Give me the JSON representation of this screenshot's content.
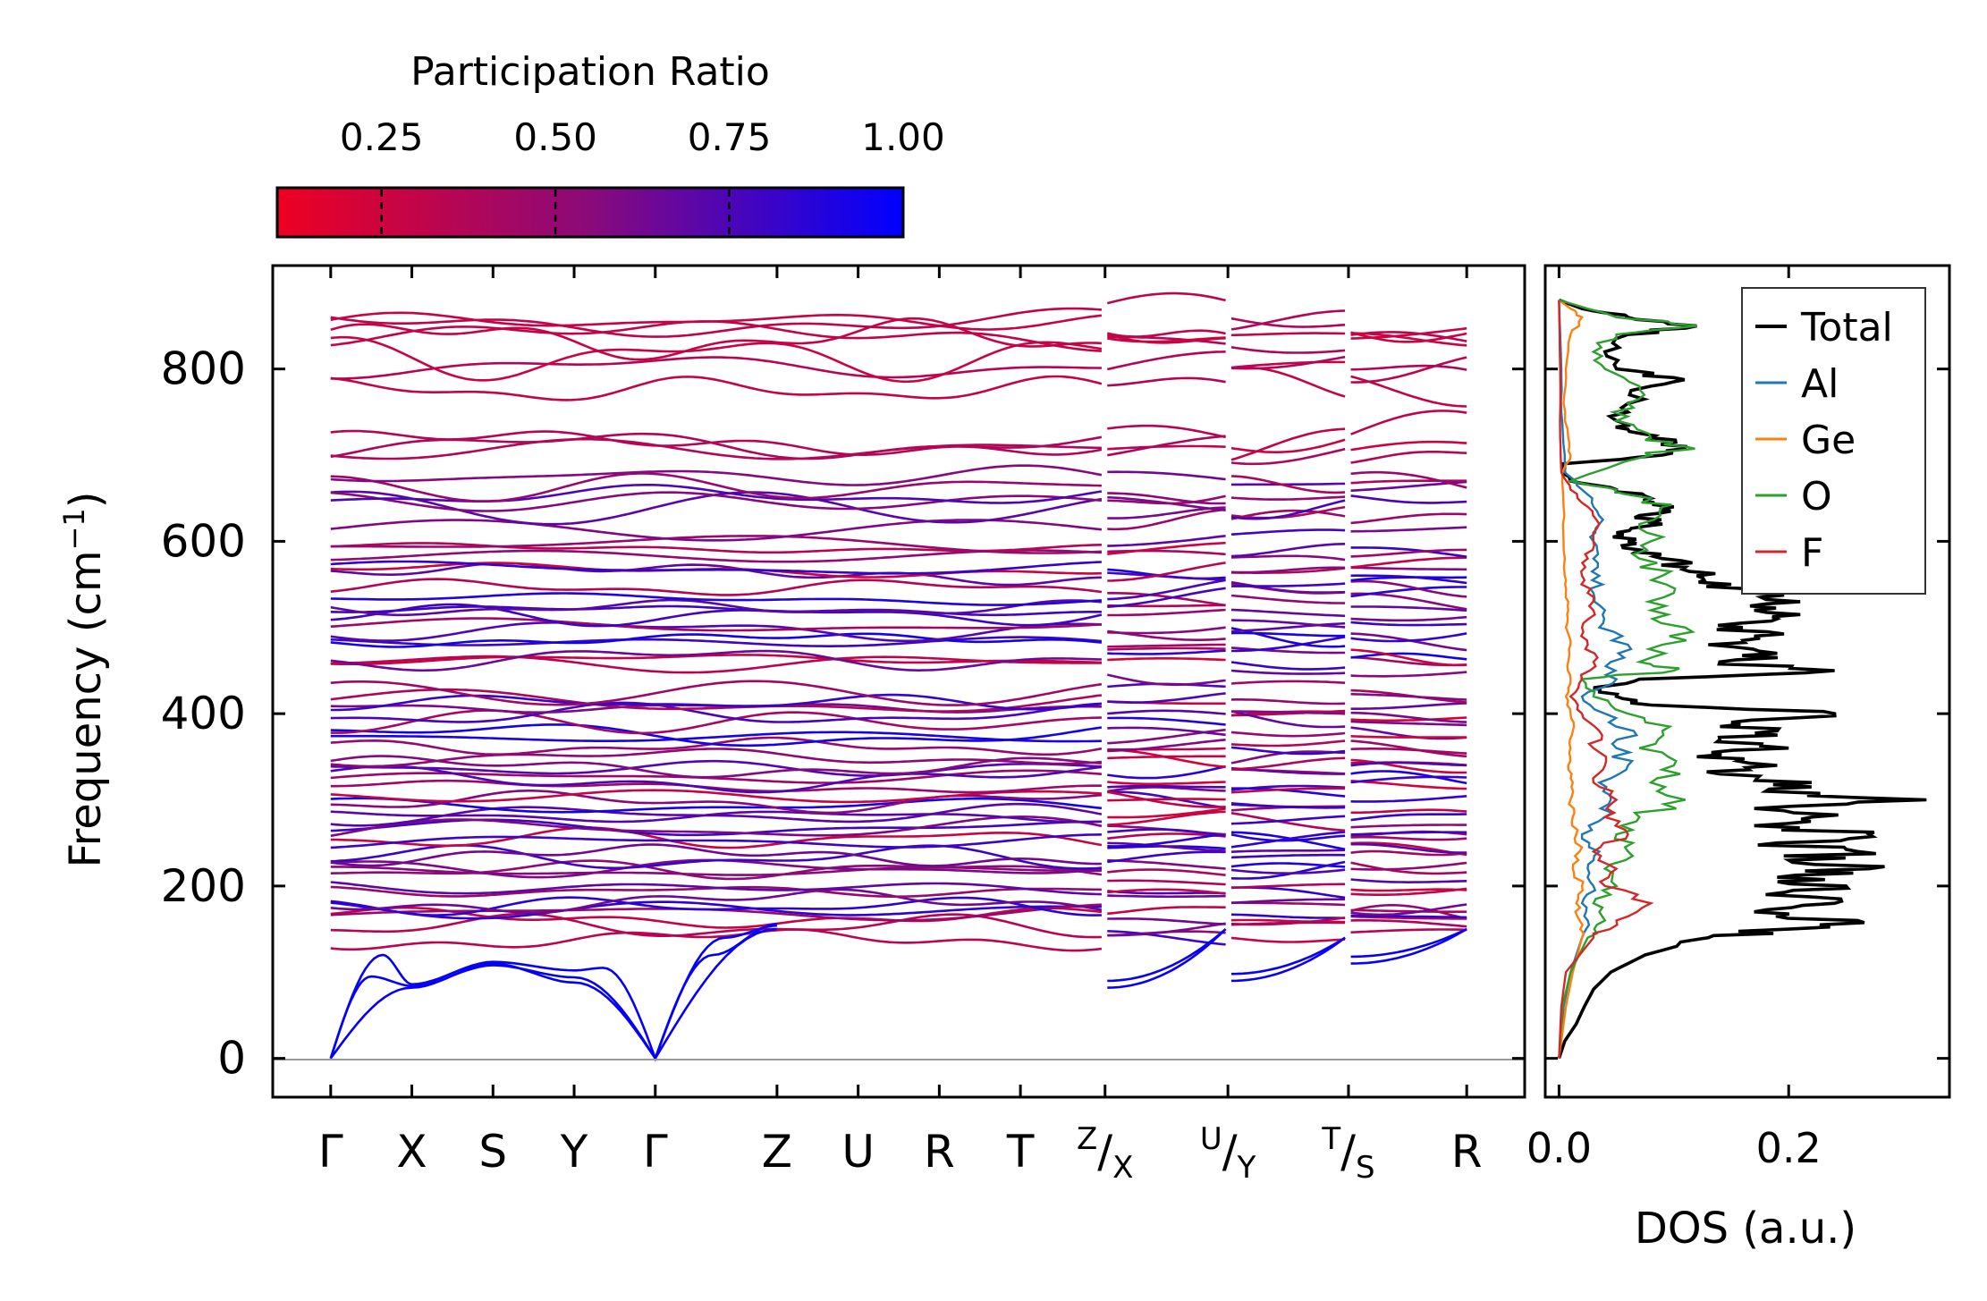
{
  "chart_data": [
    {
      "type": "line",
      "name": "phonon-band-structure",
      "title": "",
      "ylabel": "Frequency (cm",
      "ylabel_sup": "−1",
      "ylabel_tail": ")",
      "ylim": [
        -45,
        920
      ],
      "yticks": [
        0,
        200,
        400,
        600,
        800
      ],
      "ytick_labels": [
        "0",
        "200",
        "400",
        "600",
        "800"
      ],
      "path_segments": [
        {
          "labels": [
            "Γ",
            "X",
            "S",
            "Y",
            "Γ",
            "Z",
            "U",
            "R",
            "T",
            "Z"
          ],
          "positions": [
            0,
            0.7,
            1.4,
            2.1,
            2.8,
            3.85,
            4.55,
            5.25,
            5.95,
            6.65
          ]
        },
        {
          "labels": [
            "X",
            "U"
          ],
          "positions": [
            6.7,
            7.72
          ]
        },
        {
          "labels": [
            "Y",
            "T"
          ],
          "positions": [
            7.77,
            8.75
          ]
        },
        {
          "labels": [
            "S",
            "R"
          ],
          "positions": [
            8.8,
            9.8
          ]
        }
      ],
      "tick_labels": [
        {
          "text": "Γ",
          "x": 0
        },
        {
          "text": "X",
          "x": 0.7
        },
        {
          "text": "S",
          "x": 1.4
        },
        {
          "text": "Y",
          "x": 2.1
        },
        {
          "text": "Γ",
          "x": 2.8
        },
        {
          "text": "Z",
          "x": 3.85
        },
        {
          "text": "U",
          "x": 4.55
        },
        {
          "text": "R",
          "x": 5.25
        },
        {
          "text": "T",
          "x": 5.95
        },
        {
          "text": "Z",
          "sub": "X",
          "sup_style": true,
          "x": 6.68
        },
        {
          "text": "U",
          "sub": "Y",
          "sup_style": true,
          "x": 7.74
        },
        {
          "text": "T",
          "sub": "S",
          "sup_style": true,
          "x": 8.78
        },
        {
          "text": "R",
          "x": 9.8
        }
      ],
      "xlim": [
        -0.5,
        10.3
      ],
      "acoustic_branches_at_gamma": 0,
      "zone_boundary_acoustic": {
        "X": 82,
        "S": 108,
        "Y": 88,
        "Z": 150
      },
      "optical_band_gap": [
        880,
        700,
        670,
        130
      ],
      "color_by": "participation_ratio"
    },
    {
      "type": "line",
      "name": "density-of-states",
      "xlabel": "DOS (a.u.)",
      "xlim": [
        -0.012,
        0.34
      ],
      "xticks": [
        0.0,
        0.2
      ],
      "xtick_labels": [
        "0.0",
        "0.2"
      ],
      "ylim": [
        -45,
        920
      ],
      "legend_position": "top-right",
      "series": [
        {
          "name": "Total",
          "color": "#000000",
          "points": [
            [
              0,
              0.0
            ],
            [
              20,
              0.005
            ],
            [
              40,
              0.015
            ],
            [
              60,
              0.022
            ],
            [
              80,
              0.03
            ],
            [
              100,
              0.045
            ],
            [
              120,
              0.075
            ],
            [
              140,
              0.13
            ],
            [
              150,
              0.2
            ],
            [
              160,
              0.26
            ],
            [
              170,
              0.17
            ],
            [
              180,
              0.24
            ],
            [
              190,
              0.18
            ],
            [
              200,
              0.25
            ],
            [
              210,
              0.19
            ],
            [
              220,
              0.27
            ],
            [
              230,
              0.2
            ],
            [
              240,
              0.26
            ],
            [
              250,
              0.19
            ],
            [
              260,
              0.27
            ],
            [
              270,
              0.17
            ],
            [
              280,
              0.22
            ],
            [
              290,
              0.17
            ],
            [
              300,
              0.32
            ],
            [
              310,
              0.18
            ],
            [
              320,
              0.22
            ],
            [
              330,
              0.14
            ],
            [
              340,
              0.19
            ],
            [
              350,
              0.12
            ],
            [
              360,
              0.2
            ],
            [
              370,
              0.14
            ],
            [
              380,
              0.19
            ],
            [
              390,
              0.15
            ],
            [
              400,
              0.24
            ],
            [
              410,
              0.08
            ],
            [
              420,
              0.05
            ],
            [
              430,
              0.03
            ],
            [
              440,
              0.07
            ],
            [
              450,
              0.24
            ],
            [
              460,
              0.14
            ],
            [
              470,
              0.19
            ],
            [
              480,
              0.13
            ],
            [
              490,
              0.17
            ],
            [
              500,
              0.16
            ],
            [
              510,
              0.19
            ],
            [
              520,
              0.17
            ],
            [
              530,
              0.21
            ],
            [
              540,
              0.17
            ],
            [
              550,
              0.15
            ],
            [
              560,
              0.12
            ],
            [
              570,
              0.11
            ],
            [
              580,
              0.09
            ],
            [
              590,
              0.07
            ],
            [
              600,
              0.06
            ],
            [
              610,
              0.05
            ],
            [
              620,
              0.09
            ],
            [
              630,
              0.07
            ],
            [
              640,
              0.1
            ],
            [
              650,
              0.08
            ],
            [
              660,
              0.05
            ],
            [
              670,
              0.01
            ],
            [
              680,
              0.005
            ],
            [
              690,
              0.003
            ],
            [
              700,
              0.09
            ],
            [
              710,
              0.11
            ],
            [
              720,
              0.08
            ],
            [
              730,
              0.06
            ],
            [
              740,
              0.05
            ],
            [
              760,
              0.06
            ],
            [
              780,
              0.08
            ],
            [
              790,
              0.1
            ],
            [
              800,
              0.05
            ],
            [
              820,
              0.04
            ],
            [
              840,
              0.06
            ],
            [
              850,
              0.12
            ],
            [
              860,
              0.06
            ],
            [
              870,
              0.02
            ],
            [
              880,
              0.0
            ]
          ]
        },
        {
          "name": "Al",
          "color": "#1f77b4",
          "points": [
            [
              0,
              0
            ],
            [
              60,
              0.004
            ],
            [
              100,
              0.01
            ],
            [
              140,
              0.02
            ],
            [
              160,
              0.025
            ],
            [
              180,
              0.02
            ],
            [
              200,
              0.03
            ],
            [
              220,
              0.025
            ],
            [
              240,
              0.035
            ],
            [
              260,
              0.02
            ],
            [
              280,
              0.04
            ],
            [
              300,
              0.045
            ],
            [
              320,
              0.035
            ],
            [
              340,
              0.06
            ],
            [
              360,
              0.05
            ],
            [
              380,
              0.065
            ],
            [
              400,
              0.04
            ],
            [
              420,
              0.02
            ],
            [
              440,
              0.05
            ],
            [
              460,
              0.045
            ],
            [
              480,
              0.06
            ],
            [
              500,
              0.035
            ],
            [
              520,
              0.04
            ],
            [
              540,
              0.03
            ],
            [
              560,
              0.035
            ],
            [
              580,
              0.03
            ],
            [
              600,
              0.03
            ],
            [
              620,
              0.035
            ],
            [
              640,
              0.03
            ],
            [
              660,
              0.02
            ],
            [
              680,
              0.005
            ],
            [
              700,
              0.005
            ],
            [
              750,
              0.002
            ],
            [
              800,
              0.002
            ],
            [
              880,
              0
            ]
          ]
        },
        {
          "name": "Ge",
          "color": "#ff7f0e",
          "points": [
            [
              0,
              0
            ],
            [
              60,
              0.006
            ],
            [
              100,
              0.012
            ],
            [
              140,
              0.02
            ],
            [
              160,
              0.018
            ],
            [
              180,
              0.015
            ],
            [
              200,
              0.02
            ],
            [
              220,
              0.012
            ],
            [
              240,
              0.018
            ],
            [
              260,
              0.015
            ],
            [
              280,
              0.012
            ],
            [
              300,
              0.01
            ],
            [
              320,
              0.012
            ],
            [
              340,
              0.008
            ],
            [
              360,
              0.01
            ],
            [
              380,
              0.012
            ],
            [
              400,
              0.01
            ],
            [
              420,
              0.006
            ],
            [
              440,
              0.01
            ],
            [
              460,
              0.008
            ],
            [
              480,
              0.01
            ],
            [
              500,
              0.006
            ],
            [
              520,
              0.008
            ],
            [
              540,
              0.006
            ],
            [
              560,
              0.005
            ],
            [
              600,
              0.004
            ],
            [
              640,
              0.004
            ],
            [
              680,
              0.003
            ],
            [
              700,
              0.01
            ],
            [
              720,
              0.008
            ],
            [
              760,
              0.004
            ],
            [
              800,
              0.006
            ],
            [
              840,
              0.01
            ],
            [
              860,
              0.02
            ],
            [
              870,
              0.01
            ],
            [
              880,
              0
            ]
          ]
        },
        {
          "name": "O",
          "color": "#2ca02c",
          "points": [
            [
              0,
              0
            ],
            [
              60,
              0.003
            ],
            [
              100,
              0.01
            ],
            [
              140,
              0.025
            ],
            [
              160,
              0.04
            ],
            [
              180,
              0.03
            ],
            [
              200,
              0.05
            ],
            [
              220,
              0.04
            ],
            [
              240,
              0.06
            ],
            [
              260,
              0.05
            ],
            [
              280,
              0.07
            ],
            [
              300,
              0.11
            ],
            [
              320,
              0.08
            ],
            [
              340,
              0.1
            ],
            [
              360,
              0.07
            ],
            [
              380,
              0.09
            ],
            [
              400,
              0.06
            ],
            [
              420,
              0.03
            ],
            [
              440,
              0.02
            ],
            [
              450,
              0.1
            ],
            [
              460,
              0.07
            ],
            [
              480,
              0.09
            ],
            [
              500,
              0.11
            ],
            [
              520,
              0.08
            ],
            [
              540,
              0.1
            ],
            [
              560,
              0.09
            ],
            [
              580,
              0.07
            ],
            [
              600,
              0.08
            ],
            [
              620,
              0.07
            ],
            [
              640,
              0.09
            ],
            [
              650,
              0.08
            ],
            [
              660,
              0.05
            ],
            [
              670,
              0.01
            ],
            [
              700,
              0.08
            ],
            [
              710,
              0.11
            ],
            [
              720,
              0.08
            ],
            [
              740,
              0.05
            ],
            [
              760,
              0.06
            ],
            [
              780,
              0.07
            ],
            [
              800,
              0.04
            ],
            [
              820,
              0.03
            ],
            [
              840,
              0.05
            ],
            [
              850,
              0.12
            ],
            [
              860,
              0.05
            ],
            [
              880,
              0
            ]
          ]
        },
        {
          "name": "F",
          "color": "#d62728",
          "points": [
            [
              0,
              0
            ],
            [
              60,
              0.002
            ],
            [
              100,
              0.006
            ],
            [
              140,
              0.03
            ],
            [
              160,
              0.05
            ],
            [
              180,
              0.08
            ],
            [
              200,
              0.04
            ],
            [
              220,
              0.05
            ],
            [
              240,
              0.03
            ],
            [
              260,
              0.06
            ],
            [
              280,
              0.04
            ],
            [
              300,
              0.05
            ],
            [
              320,
              0.03
            ],
            [
              340,
              0.04
            ],
            [
              360,
              0.03
            ],
            [
              380,
              0.035
            ],
            [
              400,
              0.02
            ],
            [
              420,
              0.01
            ],
            [
              440,
              0.02
            ],
            [
              460,
              0.03
            ],
            [
              480,
              0.025
            ],
            [
              500,
              0.02
            ],
            [
              520,
              0.03
            ],
            [
              540,
              0.025
            ],
            [
              560,
              0.02
            ],
            [
              580,
              0.025
            ],
            [
              600,
              0.03
            ],
            [
              620,
              0.035
            ],
            [
              640,
              0.025
            ],
            [
              660,
              0.01
            ],
            [
              680,
              0.002
            ],
            [
              720,
              0.001
            ],
            [
              800,
              0.001
            ],
            [
              880,
              0
            ]
          ]
        }
      ]
    }
  ],
  "colorbar": {
    "title": "Participation Ratio",
    "min": 0.1,
    "max": 1.0,
    "ticks": [
      0.25,
      0.5,
      0.75,
      1.0
    ],
    "tick_labels": [
      "0.25",
      "0.50",
      "0.75",
      "1.00"
    ],
    "color_low": "#ee0022",
    "color_mid": "#8a0a7a",
    "color_high": "#0000ff"
  }
}
